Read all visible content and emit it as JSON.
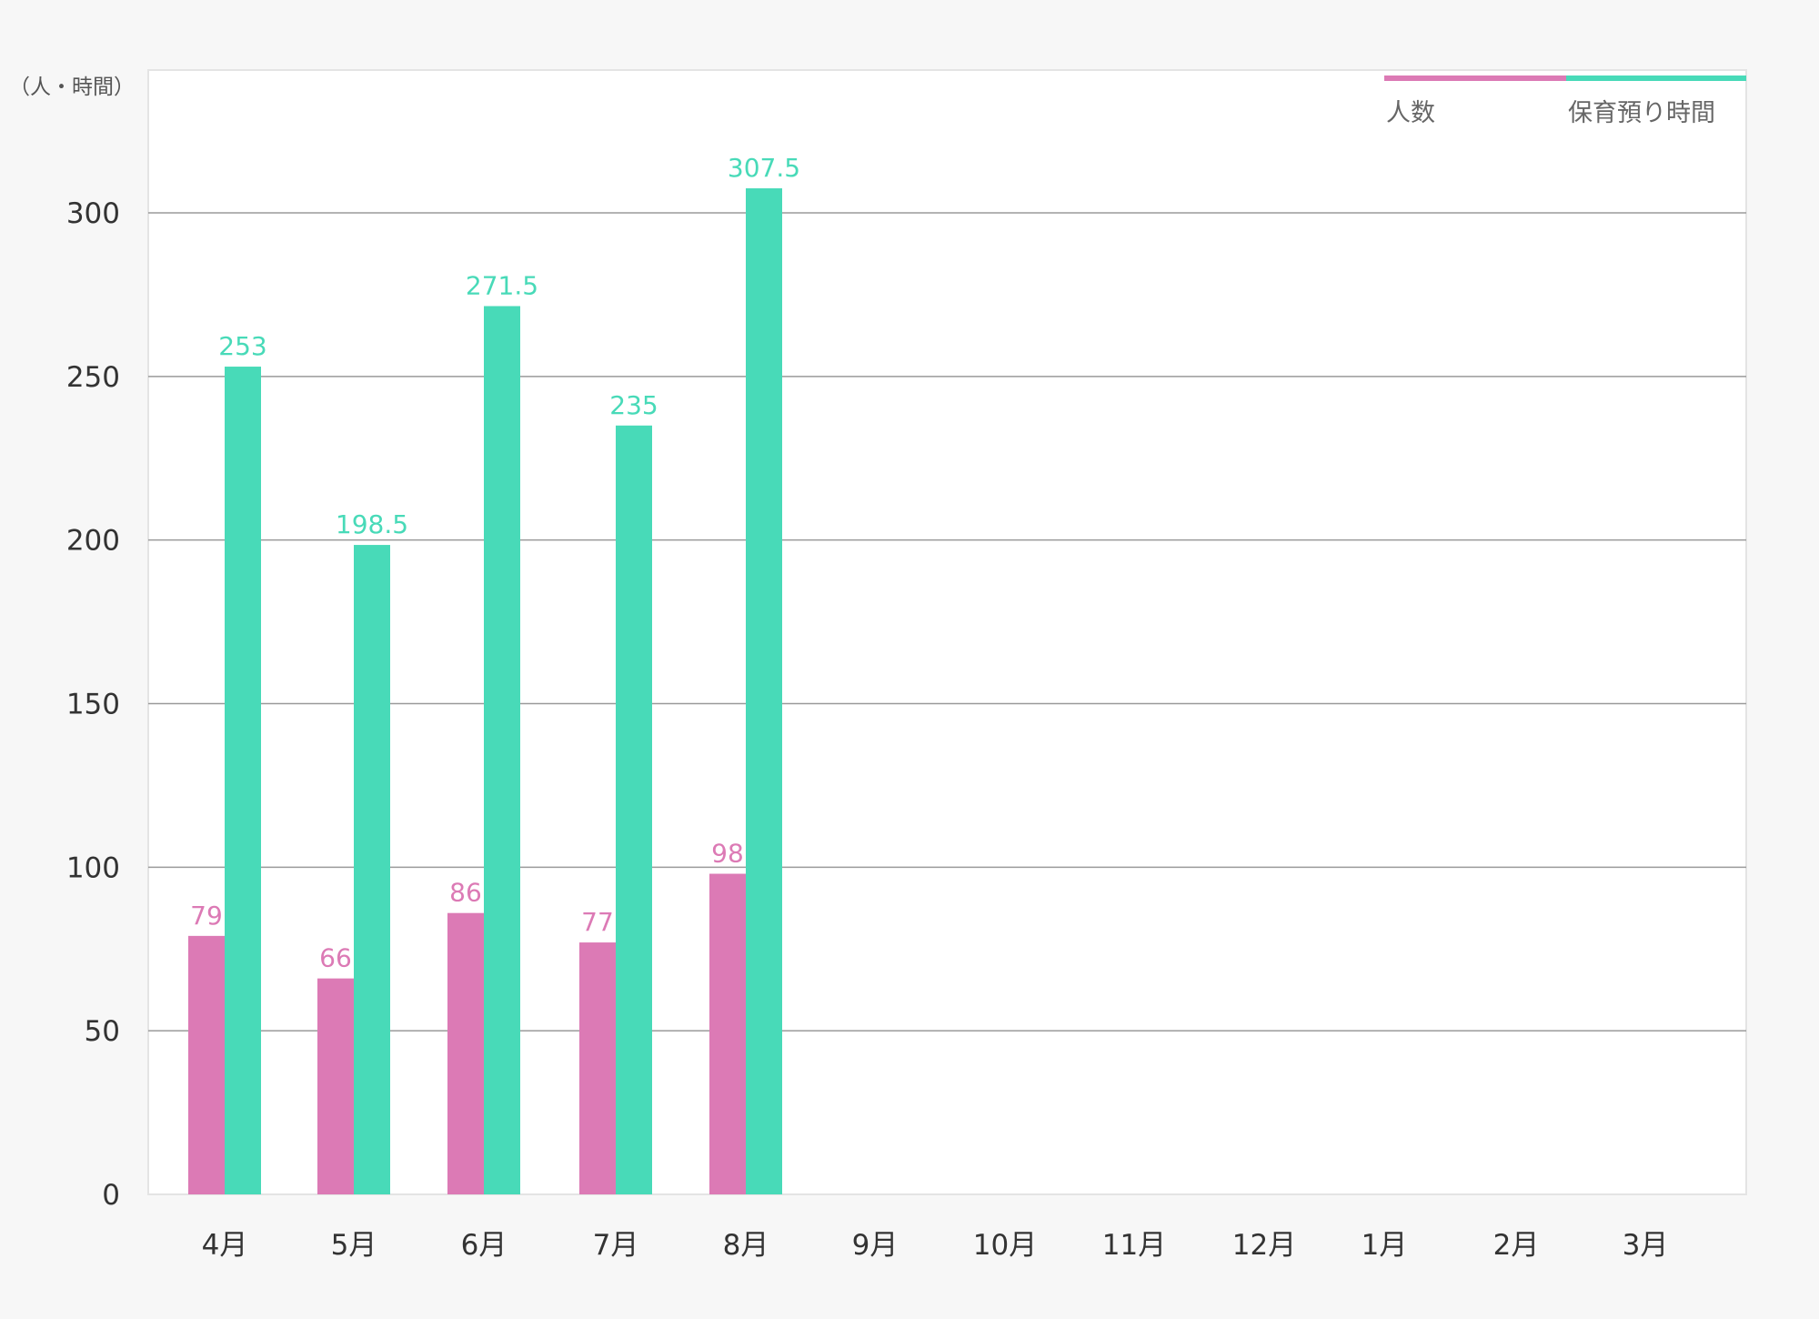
{
  "chart_data": {
    "type": "bar",
    "title": "",
    "xlabel": "",
    "ylabel": "（人・時間）",
    "ylim": [
      0,
      350
    ],
    "yticks": [
      0,
      50,
      100,
      150,
      200,
      250,
      300
    ],
    "grid": true,
    "legend_position": "top-right",
    "categories": [
      "4月",
      "5月",
      "6月",
      "7月",
      "8月",
      "9月",
      "10月",
      "11月",
      "12月",
      "1月",
      "2月",
      "3月"
    ],
    "series": [
      {
        "name": "人数",
        "color": "#dc7ab5",
        "values": [
          79,
          66,
          86,
          77,
          98,
          null,
          null,
          null,
          null,
          null,
          null,
          null
        ]
      },
      {
        "name": "保育預り時間",
        "color": "#48dab8",
        "values": [
          253,
          198.5,
          271.5,
          235,
          307.5,
          null,
          null,
          null,
          null,
          null,
          null,
          null
        ]
      }
    ]
  }
}
